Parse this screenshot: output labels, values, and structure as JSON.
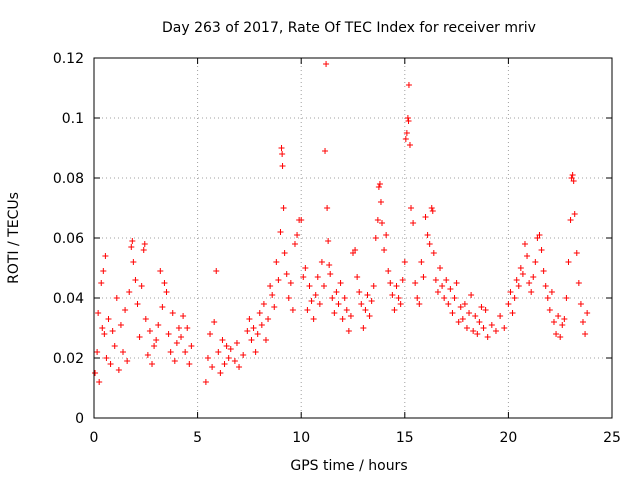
{
  "chart_data": {
    "type": "scatter",
    "title": "Day 263 of 2017, Rate Of TEC Index for receiver mriv",
    "xlabel": "GPS time / hours",
    "ylabel": "ROTI / TECUs",
    "xlim": [
      0,
      25
    ],
    "ylim": [
      0,
      0.12
    ],
    "x_ticks": [
      0,
      5,
      10,
      15,
      20,
      25
    ],
    "x_tick_labels": [
      "0",
      "5",
      "10",
      "15",
      "20",
      "25"
    ],
    "y_ticks": [
      0,
      0.02,
      0.04,
      0.06,
      0.08,
      0.1,
      0.12
    ],
    "y_tick_labels": [
      "0",
      "0.02",
      "0.04",
      "0.06",
      "0.08",
      "0.1",
      "0.12"
    ],
    "grid": true,
    "marker": "+",
    "color": "#ff0000",
    "series": [
      {
        "points": [
          [
            0.05,
            0.015
          ],
          [
            0.15,
            0.022
          ],
          [
            0.2,
            0.035
          ],
          [
            0.25,
            0.012
          ],
          [
            0.35,
            0.045
          ],
          [
            0.4,
            0.03
          ],
          [
            0.45,
            0.049
          ],
          [
            0.5,
            0.028
          ],
          [
            0.55,
            0.054
          ],
          [
            0.6,
            0.02
          ],
          [
            0.7,
            0.033
          ],
          [
            0.8,
            0.018
          ],
          [
            0.9,
            0.029
          ],
          [
            1.0,
            0.024
          ],
          [
            1.1,
            0.04
          ],
          [
            1.2,
            0.016
          ],
          [
            1.3,
            0.031
          ],
          [
            1.4,
            0.022
          ],
          [
            1.5,
            0.036
          ],
          [
            1.6,
            0.019
          ],
          [
            1.7,
            0.042
          ],
          [
            1.8,
            0.057
          ],
          [
            1.85,
            0.059
          ],
          [
            1.9,
            0.052
          ],
          [
            2.0,
            0.046
          ],
          [
            2.1,
            0.038
          ],
          [
            2.2,
            0.027
          ],
          [
            2.3,
            0.044
          ],
          [
            2.4,
            0.056
          ],
          [
            2.45,
            0.058
          ],
          [
            2.5,
            0.033
          ],
          [
            2.6,
            0.021
          ],
          [
            2.7,
            0.029
          ],
          [
            2.8,
            0.018
          ],
          [
            2.9,
            0.024
          ],
          [
            3.0,
            0.026
          ],
          [
            3.1,
            0.031
          ],
          [
            3.2,
            0.049
          ],
          [
            3.3,
            0.037
          ],
          [
            3.4,
            0.045
          ],
          [
            3.5,
            0.042
          ],
          [
            3.6,
            0.028
          ],
          [
            3.7,
            0.022
          ],
          [
            3.8,
            0.035
          ],
          [
            3.9,
            0.019
          ],
          [
            4.0,
            0.025
          ],
          [
            4.1,
            0.03
          ],
          [
            4.2,
            0.027
          ],
          [
            4.3,
            0.034
          ],
          [
            4.4,
            0.022
          ],
          [
            4.5,
            0.03
          ],
          [
            4.6,
            0.018
          ],
          [
            4.7,
            0.024
          ],
          [
            5.4,
            0.012
          ],
          [
            5.5,
            0.02
          ],
          [
            5.6,
            0.028
          ],
          [
            5.7,
            0.017
          ],
          [
            5.8,
            0.032
          ],
          [
            5.9,
            0.049
          ],
          [
            6.0,
            0.022
          ],
          [
            6.1,
            0.015
          ],
          [
            6.2,
            0.026
          ],
          [
            6.3,
            0.018
          ],
          [
            6.4,
            0.024
          ],
          [
            6.5,
            0.02
          ],
          [
            6.6,
            0.023
          ],
          [
            6.8,
            0.019
          ],
          [
            6.9,
            0.025
          ],
          [
            7.0,
            0.017
          ],
          [
            7.2,
            0.021
          ],
          [
            7.4,
            0.029
          ],
          [
            7.5,
            0.033
          ],
          [
            7.6,
            0.026
          ],
          [
            7.7,
            0.03
          ],
          [
            7.8,
            0.022
          ],
          [
            7.9,
            0.028
          ],
          [
            8.0,
            0.035
          ],
          [
            8.1,
            0.031
          ],
          [
            8.2,
            0.038
          ],
          [
            8.3,
            0.026
          ],
          [
            8.4,
            0.033
          ],
          [
            8.5,
            0.044
          ],
          [
            8.6,
            0.041
          ],
          [
            8.7,
            0.037
          ],
          [
            8.8,
            0.052
          ],
          [
            8.9,
            0.046
          ],
          [
            9.0,
            0.062
          ],
          [
            9.05,
            0.09
          ],
          [
            9.08,
            0.088
          ],
          [
            9.1,
            0.084
          ],
          [
            9.15,
            0.07
          ],
          [
            9.2,
            0.055
          ],
          [
            9.3,
            0.048
          ],
          [
            9.4,
            0.04
          ],
          [
            9.5,
            0.045
          ],
          [
            9.6,
            0.036
          ],
          [
            9.7,
            0.058
          ],
          [
            9.8,
            0.061
          ],
          [
            9.9,
            0.066
          ],
          [
            10.0,
            0.066
          ],
          [
            10.1,
            0.047
          ],
          [
            10.2,
            0.05
          ],
          [
            10.3,
            0.036
          ],
          [
            10.4,
            0.044
          ],
          [
            10.5,
            0.039
          ],
          [
            10.6,
            0.033
          ],
          [
            10.7,
            0.041
          ],
          [
            10.8,
            0.047
          ],
          [
            10.9,
            0.038
          ],
          [
            11.0,
            0.052
          ],
          [
            11.1,
            0.044
          ],
          [
            11.15,
            0.089
          ],
          [
            11.2,
            0.118
          ],
          [
            11.25,
            0.07
          ],
          [
            11.3,
            0.059
          ],
          [
            11.35,
            0.051
          ],
          [
            11.4,
            0.048
          ],
          [
            11.5,
            0.04
          ],
          [
            11.6,
            0.035
          ],
          [
            11.7,
            0.042
          ],
          [
            11.8,
            0.038
          ],
          [
            11.9,
            0.045
          ],
          [
            12.0,
            0.033
          ],
          [
            12.1,
            0.04
          ],
          [
            12.2,
            0.036
          ],
          [
            12.3,
            0.029
          ],
          [
            12.4,
            0.034
          ],
          [
            12.5,
            0.055
          ],
          [
            12.6,
            0.056
          ],
          [
            12.7,
            0.047
          ],
          [
            12.8,
            0.042
          ],
          [
            12.9,
            0.038
          ],
          [
            13.0,
            0.03
          ],
          [
            13.1,
            0.036
          ],
          [
            13.2,
            0.041
          ],
          [
            13.3,
            0.034
          ],
          [
            13.4,
            0.039
          ],
          [
            13.5,
            0.044
          ],
          [
            13.6,
            0.06
          ],
          [
            13.7,
            0.066
          ],
          [
            13.75,
            0.077
          ],
          [
            13.8,
            0.078
          ],
          [
            13.85,
            0.072
          ],
          [
            13.9,
            0.065
          ],
          [
            14.0,
            0.056
          ],
          [
            14.1,
            0.061
          ],
          [
            14.2,
            0.049
          ],
          [
            14.3,
            0.045
          ],
          [
            14.4,
            0.041
          ],
          [
            14.5,
            0.036
          ],
          [
            14.6,
            0.044
          ],
          [
            14.7,
            0.04
          ],
          [
            14.8,
            0.038
          ],
          [
            14.9,
            0.046
          ],
          [
            15.0,
            0.052
          ],
          [
            15.05,
            0.093
          ],
          [
            15.1,
            0.095
          ],
          [
            15.15,
            0.1
          ],
          [
            15.18,
            0.099
          ],
          [
            15.2,
            0.111
          ],
          [
            15.25,
            0.091
          ],
          [
            15.3,
            0.07
          ],
          [
            15.4,
            0.065
          ],
          [
            15.5,
            0.045
          ],
          [
            15.6,
            0.04
          ],
          [
            15.7,
            0.038
          ],
          [
            15.8,
            0.052
          ],
          [
            15.9,
            0.047
          ],
          [
            16.0,
            0.067
          ],
          [
            16.1,
            0.061
          ],
          [
            16.2,
            0.058
          ],
          [
            16.3,
            0.07
          ],
          [
            16.35,
            0.069
          ],
          [
            16.4,
            0.055
          ],
          [
            16.5,
            0.046
          ],
          [
            16.6,
            0.042
          ],
          [
            16.7,
            0.05
          ],
          [
            16.8,
            0.044
          ],
          [
            16.9,
            0.04
          ],
          [
            17.0,
            0.046
          ],
          [
            17.1,
            0.038
          ],
          [
            17.2,
            0.043
          ],
          [
            17.3,
            0.035
          ],
          [
            17.4,
            0.04
          ],
          [
            17.5,
            0.045
          ],
          [
            17.6,
            0.032
          ],
          [
            17.7,
            0.037
          ],
          [
            17.8,
            0.033
          ],
          [
            17.9,
            0.038
          ],
          [
            18.0,
            0.03
          ],
          [
            18.1,
            0.035
          ],
          [
            18.2,
            0.041
          ],
          [
            18.3,
            0.029
          ],
          [
            18.4,
            0.034
          ],
          [
            18.5,
            0.028
          ],
          [
            18.6,
            0.032
          ],
          [
            18.7,
            0.037
          ],
          [
            18.8,
            0.03
          ],
          [
            18.9,
            0.036
          ],
          [
            19.0,
            0.027
          ],
          [
            19.2,
            0.031
          ],
          [
            19.4,
            0.029
          ],
          [
            19.6,
            0.034
          ],
          [
            19.8,
            0.03
          ],
          [
            20.0,
            0.038
          ],
          [
            20.1,
            0.042
          ],
          [
            20.2,
            0.035
          ],
          [
            20.3,
            0.04
          ],
          [
            20.4,
            0.046
          ],
          [
            20.5,
            0.044
          ],
          [
            20.6,
            0.05
          ],
          [
            20.7,
            0.048
          ],
          [
            20.8,
            0.058
          ],
          [
            20.9,
            0.054
          ],
          [
            21.0,
            0.045
          ],
          [
            21.1,
            0.042
          ],
          [
            21.2,
            0.047
          ],
          [
            21.3,
            0.052
          ],
          [
            21.4,
            0.06
          ],
          [
            21.5,
            0.061
          ],
          [
            21.6,
            0.056
          ],
          [
            21.7,
            0.049
          ],
          [
            21.8,
            0.044
          ],
          [
            21.9,
            0.04
          ],
          [
            22.0,
            0.036
          ],
          [
            22.1,
            0.042
          ],
          [
            22.2,
            0.032
          ],
          [
            22.3,
            0.028
          ],
          [
            22.4,
            0.034
          ],
          [
            22.5,
            0.027
          ],
          [
            22.6,
            0.031
          ],
          [
            22.7,
            0.033
          ],
          [
            22.8,
            0.04
          ],
          [
            22.9,
            0.052
          ],
          [
            23.0,
            0.066
          ],
          [
            23.05,
            0.08
          ],
          [
            23.1,
            0.081
          ],
          [
            23.15,
            0.079
          ],
          [
            23.2,
            0.068
          ],
          [
            23.3,
            0.055
          ],
          [
            23.4,
            0.045
          ],
          [
            23.5,
            0.038
          ],
          [
            23.6,
            0.032
          ],
          [
            23.7,
            0.028
          ],
          [
            23.8,
            0.035
          ]
        ]
      }
    ]
  }
}
